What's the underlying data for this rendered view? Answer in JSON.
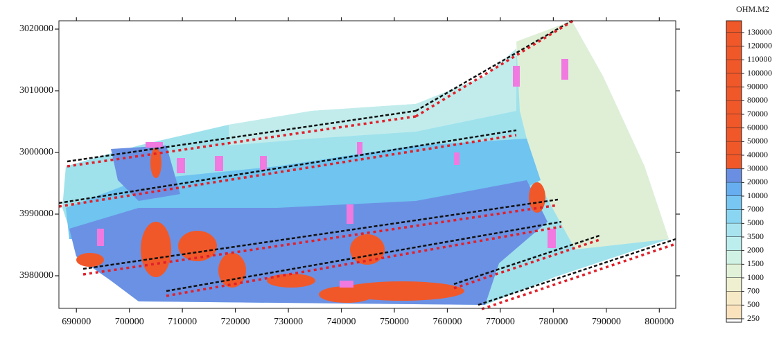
{
  "map": {
    "xlim": [
      686700,
      803100
    ],
    "xticks": [
      690000,
      700000,
      710000,
      720000,
      730000,
      740000,
      750000,
      760000,
      770000,
      780000,
      790000,
      800000
    ],
    "yticks": [
      3020000,
      3010000,
      3000000,
      3990000,
      3980000
    ],
    "legend": {
      "title": "OHM.M2",
      "levels": [
        130000,
        120000,
        110000,
        100000,
        90000,
        80000,
        70000,
        60000,
        50000,
        40000,
        30000,
        20000,
        10000,
        7000,
        5000,
        3500,
        2000,
        1500,
        1000,
        700,
        500,
        250
      ],
      "colors": [
        "#f0582a",
        "#f0582a",
        "#f0582a",
        "#f0582a",
        "#f0582a",
        "#f0582a",
        "#f0582a",
        "#f0582a",
        "#f0582a",
        "#f0582a",
        "#f0582a",
        "#6a8fe2",
        "#66aef0",
        "#78c6f2",
        "#8ad6f2",
        "#a8e4f0",
        "#bdeeee",
        "#d0f2e4",
        "#e2f2d8",
        "#eef0d0",
        "#f6eac6",
        "#fae2bc"
      ]
    }
  }
}
